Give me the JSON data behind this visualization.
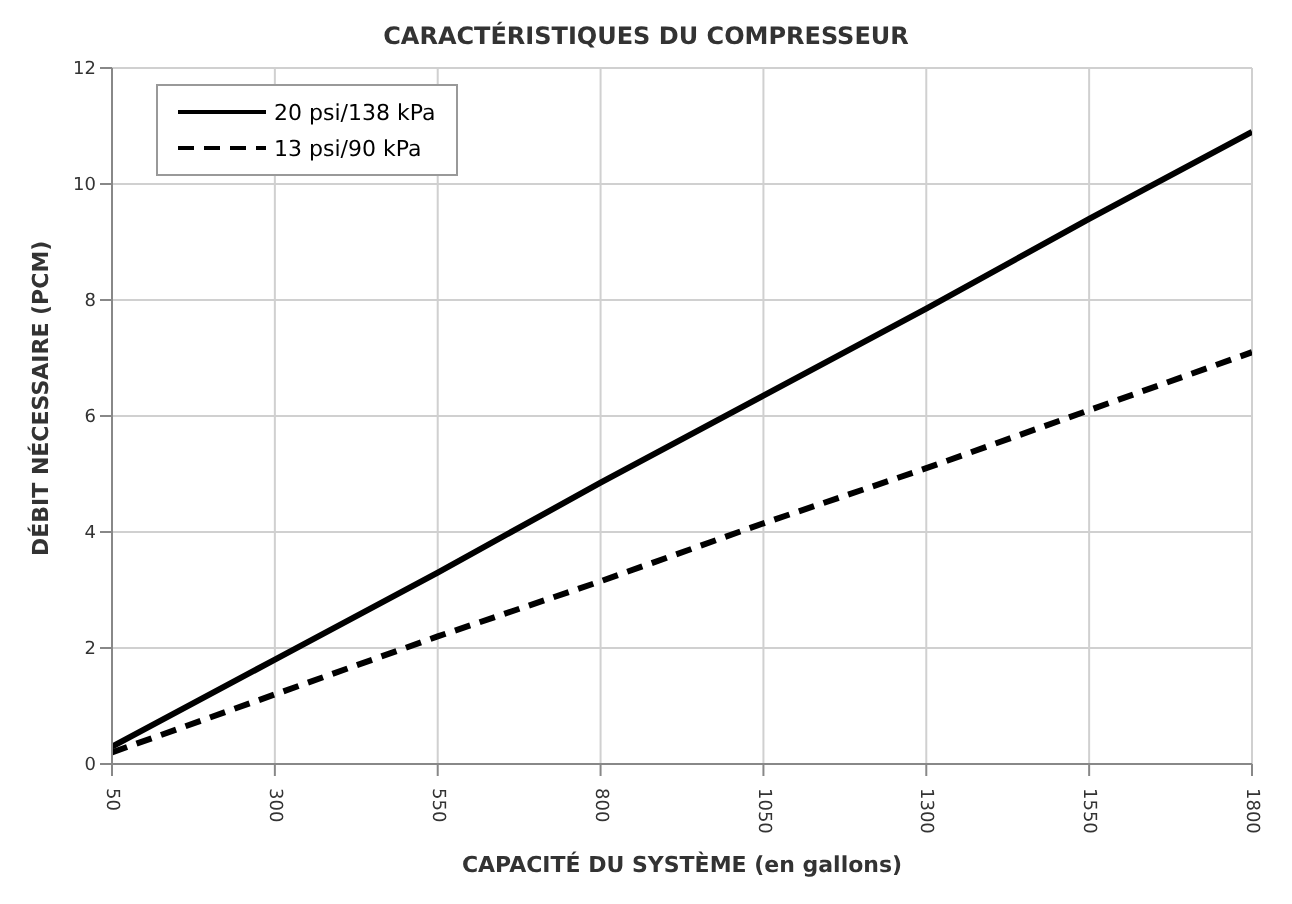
{
  "chart_data": {
    "type": "line",
    "title": "CARACTÉRISTIQUES DU COMPRESSEUR",
    "xlabel": "CAPACITÉ DU SYSTÈME (en gallons)",
    "ylabel": "DÉBIT NÉCESSAIRE (PCM)",
    "x": [
      50,
      300,
      550,
      800,
      1050,
      1300,
      1550,
      1800
    ],
    "series": [
      {
        "name": "20 psi/138 kPa",
        "color": "#000000",
        "line_style": "solid",
        "values": [
          0.3,
          1.8,
          3.3,
          4.85,
          6.35,
          7.85,
          9.4,
          10.9
        ]
      },
      {
        "name": "13 psi/90 kPa",
        "color": "#000000",
        "line_style": "dashed",
        "values": [
          0.2,
          1.2,
          2.2,
          3.15,
          4.15,
          5.1,
          6.1,
          7.1
        ]
      }
    ],
    "xlim": [
      50,
      1800
    ],
    "xticks": [
      50,
      300,
      550,
      800,
      1050,
      1300,
      1550,
      1800
    ],
    "ylim": [
      0,
      12
    ],
    "yticks": [
      0,
      2,
      4,
      6,
      8,
      10,
      12
    ],
    "grid": true,
    "legend": "top left",
    "marker": "none"
  }
}
